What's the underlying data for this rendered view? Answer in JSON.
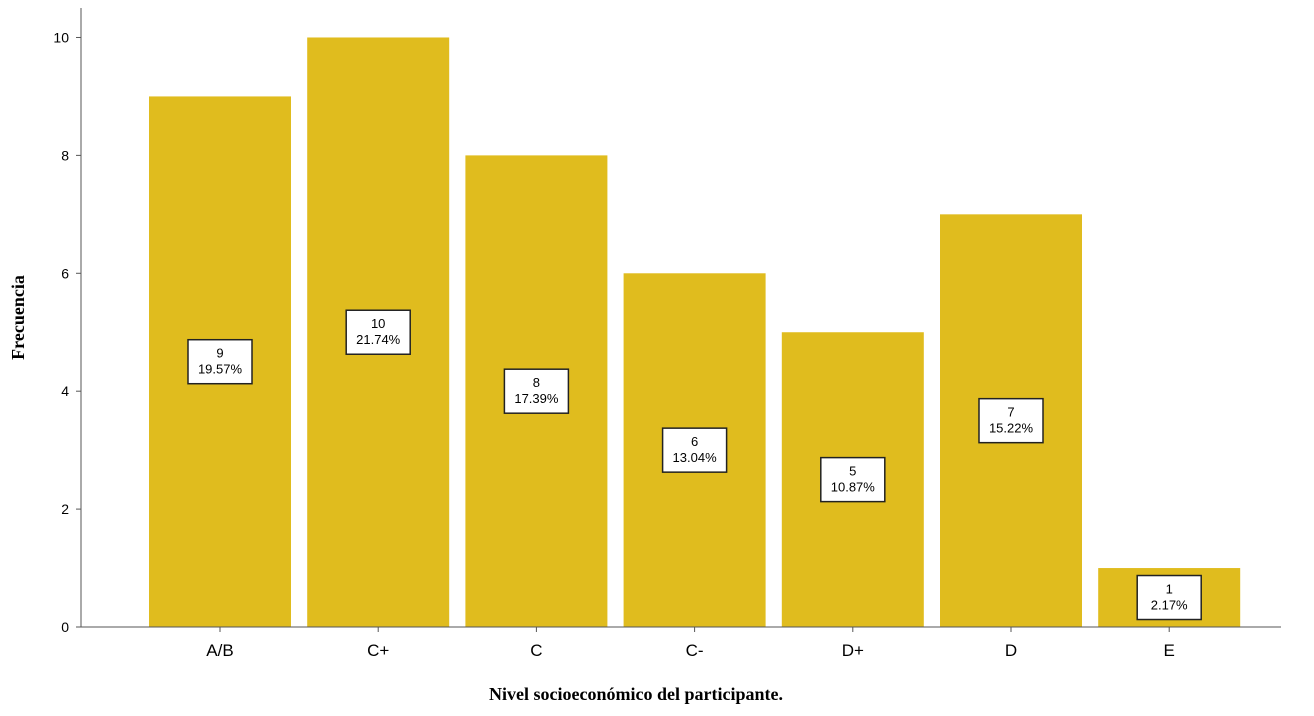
{
  "chart_data": {
    "type": "bar",
    "xlabel": "Nivel socioeconómico del participante.",
    "ylabel": "Frecuencia",
    "ylim": [
      0,
      10.5
    ],
    "yticks": [
      0,
      2,
      4,
      6,
      8,
      10
    ],
    "categories": [
      "A/B",
      "C+",
      "C",
      "C-",
      "D+",
      "D",
      "E"
    ],
    "values": [
      9,
      10,
      8,
      6,
      5,
      7,
      1
    ],
    "percent_labels": [
      "19.57%",
      "21.74%",
      "17.39%",
      "13.04%",
      "10.87%",
      "15.22%",
      "2.17%"
    ],
    "bar_color": "#e0bc1e",
    "grid": false,
    "legend": "none"
  }
}
